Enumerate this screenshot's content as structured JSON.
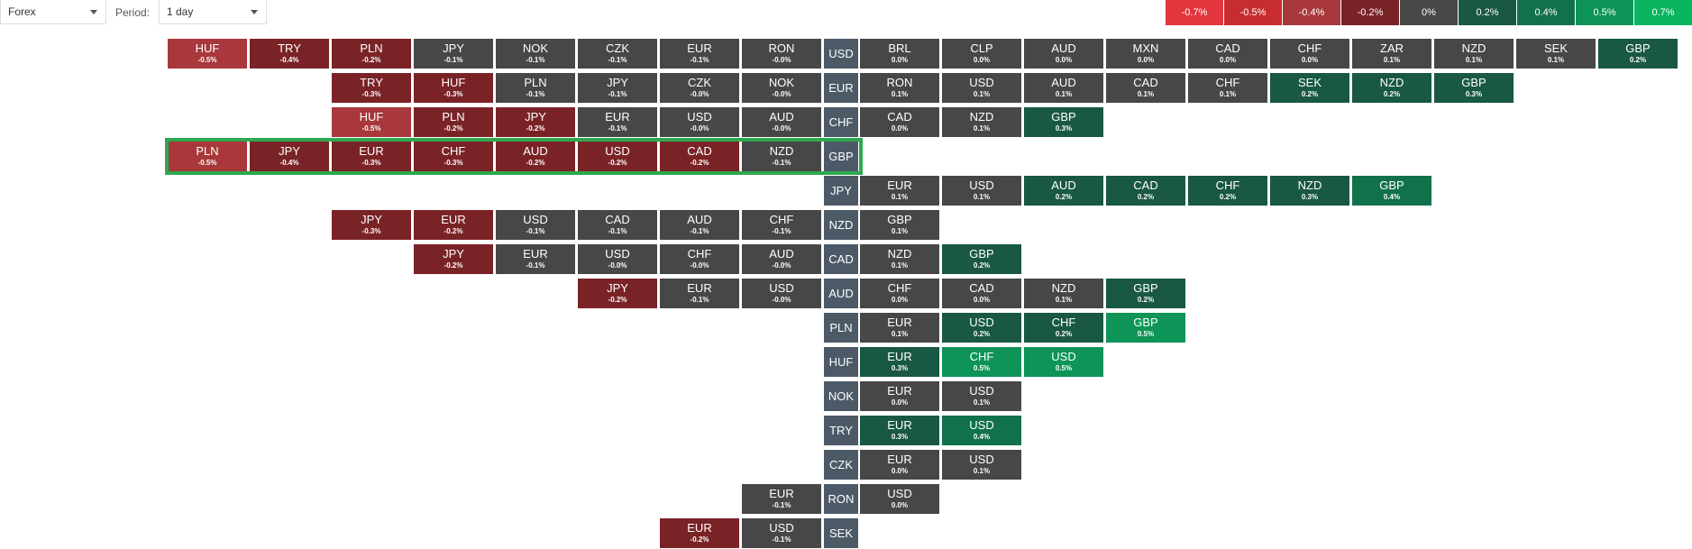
{
  "toolbar": {
    "market": "Forex",
    "period_label": "Period:",
    "period": "1 day"
  },
  "legend": [
    {
      "label": "-0.7%",
      "color": "#e2363c"
    },
    {
      "label": "-0.5%",
      "color": "#c72d30"
    },
    {
      "label": "-0.4%",
      "color": "#a8383b"
    },
    {
      "label": "-0.2%",
      "color": "#7a2327"
    },
    {
      "label": "0%",
      "color": "#474747"
    },
    {
      "label": "0.2%",
      "color": "#195842"
    },
    {
      "label": "0.4%",
      "color": "#11714b"
    },
    {
      "label": "0.5%",
      "color": "#0d9456"
    },
    {
      "label": "0.7%",
      "color": "#09b55f"
    }
  ],
  "rows": [
    {
      "base": "USD",
      "start": -8,
      "left": [
        [
          "HUF",
          "-0.5%"
        ],
        [
          "TRY",
          "-0.4%"
        ],
        [
          "PLN",
          "-0.2%"
        ],
        [
          "JPY",
          "-0.1%"
        ],
        [
          "NOK",
          "-0.1%"
        ],
        [
          "CZK",
          "-0.1%"
        ],
        [
          "EUR",
          "-0.1%"
        ],
        [
          "RON",
          "-0.0%"
        ]
      ],
      "right": [
        [
          "BRL",
          "0.0%"
        ],
        [
          "CLP",
          "0.0%"
        ],
        [
          "AUD",
          "0.0%"
        ],
        [
          "MXN",
          "0.0%"
        ],
        [
          "CAD",
          "0.0%"
        ],
        [
          "CHF",
          "0.0%"
        ],
        [
          "ZAR",
          "0.1%"
        ],
        [
          "NZD",
          "0.1%"
        ],
        [
          "SEK",
          "0.1%"
        ],
        [
          "GBP",
          "0.2%"
        ]
      ]
    },
    {
      "base": "EUR",
      "start": -6,
      "left": [
        [
          "TRY",
          "-0.3%"
        ],
        [
          "HUF",
          "-0.3%"
        ],
        [
          "PLN",
          "-0.1%"
        ],
        [
          "JPY",
          "-0.1%"
        ],
        [
          "CZK",
          "-0.0%"
        ],
        [
          "NOK",
          "-0.0%"
        ]
      ],
      "right": [
        [
          "RON",
          "0.1%"
        ],
        [
          "USD",
          "0.1%"
        ],
        [
          "AUD",
          "0.1%"
        ],
        [
          "CAD",
          "0.1%"
        ],
        [
          "CHF",
          "0.1%"
        ],
        [
          "SEK",
          "0.2%"
        ],
        [
          "NZD",
          "0.2%"
        ],
        [
          "GBP",
          "0.3%"
        ]
      ]
    },
    {
      "base": "CHF",
      "start": -6,
      "left": [
        [
          "HUF",
          "-0.5%"
        ],
        [
          "PLN",
          "-0.2%"
        ],
        [
          "JPY",
          "-0.2%"
        ],
        [
          "EUR",
          "-0.1%"
        ],
        [
          "USD",
          "-0.0%"
        ],
        [
          "AUD",
          "-0.0%"
        ]
      ],
      "right": [
        [
          "CAD",
          "0.0%"
        ],
        [
          "NZD",
          "0.1%"
        ],
        [
          "GBP",
          "0.3%"
        ]
      ]
    },
    {
      "base": "GBP",
      "start": -8,
      "left": [
        [
          "PLN",
          "-0.5%"
        ],
        [
          "JPY",
          "-0.4%"
        ],
        [
          "EUR",
          "-0.3%"
        ],
        [
          "CHF",
          "-0.3%"
        ],
        [
          "AUD",
          "-0.2%"
        ],
        [
          "USD",
          "-0.2%"
        ],
        [
          "CAD",
          "-0.2%"
        ],
        [
          "NZD",
          "-0.1%"
        ]
      ],
      "right": []
    },
    {
      "base": "JPY",
      "start": 0,
      "left": [],
      "right": [
        [
          "EUR",
          "0.1%"
        ],
        [
          "USD",
          "0.1%"
        ],
        [
          "AUD",
          "0.2%"
        ],
        [
          "CAD",
          "0.2%"
        ],
        [
          "CHF",
          "0.2%"
        ],
        [
          "NZD",
          "0.3%"
        ],
        [
          "GBP",
          "0.4%"
        ]
      ]
    },
    {
      "base": "NZD",
      "start": -6,
      "left": [
        [
          "JPY",
          "-0.3%"
        ],
        [
          "EUR",
          "-0.2%"
        ],
        [
          "USD",
          "-0.1%"
        ],
        [
          "CAD",
          "-0.1%"
        ],
        [
          "AUD",
          "-0.1%"
        ],
        [
          "CHF",
          "-0.1%"
        ]
      ],
      "right": [
        [
          "GBP",
          "0.1%"
        ]
      ]
    },
    {
      "base": "CAD",
      "start": -5,
      "left": [
        [
          "JPY",
          "-0.2%"
        ],
        [
          "EUR",
          "-0.1%"
        ],
        [
          "USD",
          "-0.0%"
        ],
        [
          "CHF",
          "-0.0%"
        ],
        [
          "AUD",
          "-0.0%"
        ]
      ],
      "right": [
        [
          "NZD",
          "0.1%"
        ],
        [
          "GBP",
          "0.2%"
        ]
      ]
    },
    {
      "base": "AUD",
      "start": -3,
      "left": [
        [
          "JPY",
          "-0.2%"
        ],
        [
          "EUR",
          "-0.1%"
        ],
        [
          "USD",
          "-0.0%"
        ]
      ],
      "right": [
        [
          "CHF",
          "0.0%"
        ],
        [
          "CAD",
          "0.0%"
        ],
        [
          "NZD",
          "0.1%"
        ],
        [
          "GBP",
          "0.2%"
        ]
      ]
    },
    {
      "base": "PLN",
      "start": 0,
      "left": [],
      "right": [
        [
          "EUR",
          "0.1%"
        ],
        [
          "USD",
          "0.2%"
        ],
        [
          "CHF",
          "0.2%"
        ],
        [
          "GBP",
          "0.5%"
        ]
      ]
    },
    {
      "base": "HUF",
      "start": 0,
      "left": [],
      "right": [
        [
          "EUR",
          "0.3%"
        ],
        [
          "CHF",
          "0.5%"
        ],
        [
          "USD",
          "0.5%"
        ]
      ]
    },
    {
      "base": "NOK",
      "start": 0,
      "left": [],
      "right": [
        [
          "EUR",
          "0.0%"
        ],
        [
          "USD",
          "0.1%"
        ]
      ]
    },
    {
      "base": "TRY",
      "start": 0,
      "left": [],
      "right": [
        [
          "EUR",
          "0.3%"
        ],
        [
          "USD",
          "0.4%"
        ]
      ]
    },
    {
      "base": "CZK",
      "start": 0,
      "left": [],
      "right": [
        [
          "EUR",
          "0.0%"
        ],
        [
          "USD",
          "0.1%"
        ]
      ]
    },
    {
      "base": "RON",
      "start": -1,
      "left": [
        [
          "EUR",
          "-0.1%"
        ]
      ],
      "right": [
        [
          "USD",
          "0.0%"
        ]
      ]
    },
    {
      "base": "SEK",
      "start": -2,
      "left": [
        [
          "EUR",
          "-0.2%"
        ],
        [
          "USD",
          "-0.1%"
        ]
      ],
      "right": []
    }
  ],
  "highlighted_row": "GBP"
}
